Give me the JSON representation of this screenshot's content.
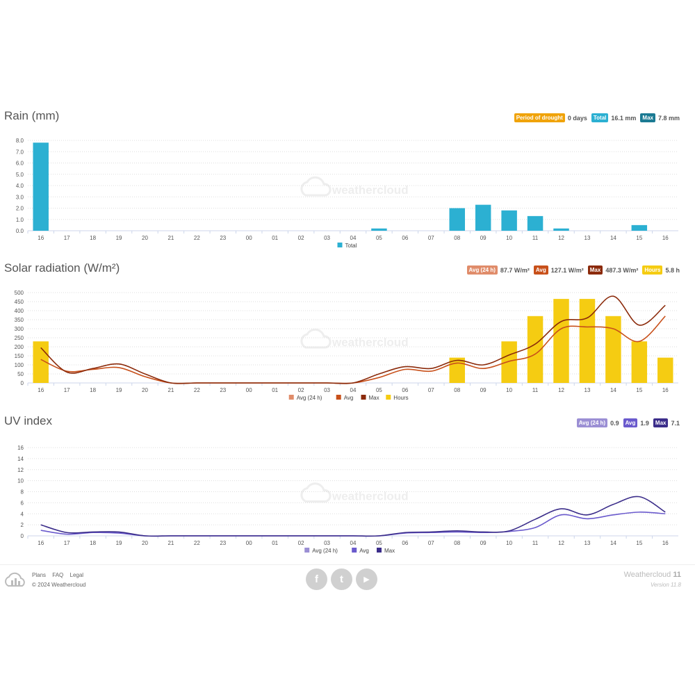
{
  "x_ticks": [
    "16",
    "17",
    "18",
    "19",
    "20",
    "21",
    "22",
    "23",
    "00",
    "01",
    "02",
    "03",
    "04",
    "05",
    "06",
    "07",
    "08",
    "09",
    "10",
    "11",
    "12",
    "13",
    "14",
    "15",
    "16"
  ],
  "watermark": "weathercloud",
  "colors": {
    "grid": "#dddddd",
    "axis": "#ccd6eb",
    "tick_text": "#555555"
  },
  "rain": {
    "title": "Rain (mm)",
    "badges": [
      {
        "label": "Period of drought",
        "value": "0 days",
        "color": "#f0a30a"
      },
      {
        "label": "Total",
        "value": "16.1 mm",
        "color": "#2cb0d2"
      },
      {
        "label": "Max",
        "value": "7.8 mm",
        "color": "#1b7a93"
      }
    ],
    "legend": [
      {
        "name": "Total",
        "color": "#2cb0d2"
      }
    ]
  },
  "solar": {
    "title": "Solar radiation (W/m²)",
    "badges": [
      {
        "label": "Avg (24 h)",
        "value": "87.7 W/m²",
        "color": "#e08c6a"
      },
      {
        "label": "Avg",
        "value": "127.1 W/m²",
        "color": "#c8501a"
      },
      {
        "label": "Max",
        "value": "487.3 W/m²",
        "color": "#8b2a0a"
      },
      {
        "label": "Hours",
        "value": "5.8 h",
        "color": "#f5cc12"
      }
    ],
    "legend": [
      {
        "name": "Avg (24 h)",
        "color": "#e08c6a"
      },
      {
        "name": "Avg",
        "color": "#c8501a"
      },
      {
        "name": "Max",
        "color": "#8b2a0a"
      },
      {
        "name": "Hours",
        "color": "#f5cc12"
      }
    ]
  },
  "uv": {
    "title": "UV index",
    "badges": [
      {
        "label": "Avg (24 h)",
        "value": "0.9",
        "color": "#9b8fd4"
      },
      {
        "label": "Avg",
        "value": "1.9",
        "color": "#6a5acd"
      },
      {
        "label": "Max",
        "value": "7.1",
        "color": "#3b2d8a"
      }
    ],
    "legend": [
      {
        "name": "Avg (24 h)",
        "color": "#9b8fd4"
      },
      {
        "name": "Avg",
        "color": "#6a5acd"
      },
      {
        "name": "Max",
        "color": "#3b2d8a"
      }
    ]
  },
  "chart_data": [
    {
      "type": "bar",
      "title": "Rain (mm)",
      "categories": [
        "16",
        "17",
        "18",
        "19",
        "20",
        "21",
        "22",
        "23",
        "00",
        "01",
        "02",
        "03",
        "04",
        "05",
        "06",
        "07",
        "08",
        "09",
        "10",
        "11",
        "12",
        "13",
        "14",
        "15",
        "16"
      ],
      "series": [
        {
          "name": "Total",
          "values": [
            7.8,
            0,
            0,
            0,
            0,
            0,
            0,
            0,
            0,
            0,
            0,
            0,
            0,
            0.2,
            0,
            0,
            2.0,
            2.3,
            1.8,
            1.3,
            0.2,
            0,
            0,
            0.5,
            0
          ]
        }
      ],
      "ylim": [
        0,
        8
      ],
      "yticks": [
        "0.0",
        "1.0",
        "2.0",
        "3.0",
        "4.0",
        "5.0",
        "6.0",
        "7.0",
        "8.0"
      ],
      "grid": true,
      "legend": "bottom"
    },
    {
      "type": "bar",
      "title": "Solar radiation (W/m²)",
      "categories": [
        "16",
        "17",
        "18",
        "19",
        "20",
        "21",
        "22",
        "23",
        "00",
        "01",
        "02",
        "03",
        "04",
        "05",
        "06",
        "07",
        "08",
        "09",
        "10",
        "11",
        "12",
        "13",
        "14",
        "15",
        "16"
      ],
      "series": [
        {
          "name": "Hours",
          "type": "bar",
          "values": [
            230,
            0,
            0,
            0,
            0,
            0,
            0,
            0,
            0,
            0,
            0,
            0,
            0,
            0,
            0,
            0,
            140,
            0,
            230,
            370,
            465,
            465,
            370,
            230,
            140
          ]
        },
        {
          "name": "Avg",
          "type": "line",
          "values": [
            130,
            65,
            75,
            85,
            35,
            0,
            0,
            0,
            0,
            0,
            0,
            0,
            0,
            30,
            75,
            65,
            110,
            80,
            120,
            160,
            300,
            310,
            300,
            230,
            370
          ]
        },
        {
          "name": "Max",
          "type": "line",
          "values": [
            195,
            60,
            80,
            105,
            50,
            0,
            0,
            0,
            0,
            0,
            0,
            0,
            0,
            50,
            90,
            80,
            125,
            100,
            155,
            215,
            340,
            360,
            480,
            320,
            430
          ]
        }
      ],
      "ylim": [
        0,
        500
      ],
      "yticks": [
        "0",
        "50",
        "100",
        "150",
        "200",
        "250",
        "300",
        "350",
        "400",
        "450",
        "500"
      ],
      "grid": true,
      "legend": "bottom"
    },
    {
      "type": "line",
      "title": "UV index",
      "categories": [
        "16",
        "17",
        "18",
        "19",
        "20",
        "21",
        "22",
        "23",
        "00",
        "01",
        "02",
        "03",
        "04",
        "05",
        "06",
        "07",
        "08",
        "09",
        "10",
        "11",
        "12",
        "13",
        "14",
        "15",
        "16"
      ],
      "series": [
        {
          "name": "Avg",
          "values": [
            1.0,
            0.3,
            0.6,
            0.5,
            0,
            0,
            0,
            0,
            0,
            0,
            0,
            0,
            0,
            0,
            0.5,
            0.6,
            0.7,
            0.6,
            0.8,
            1.5,
            3.8,
            3.1,
            3.8,
            4.3,
            4.0
          ]
        },
        {
          "name": "Max",
          "values": [
            2.0,
            0.6,
            0.7,
            0.7,
            0,
            0,
            0,
            0,
            0,
            0,
            0,
            0,
            0,
            0,
            0.6,
            0.7,
            0.9,
            0.7,
            0.9,
            3.0,
            4.9,
            3.8,
            5.7,
            7.1,
            4.3
          ]
        }
      ],
      "ylim": [
        0,
        16
      ],
      "yticks": [
        "0",
        "2",
        "4",
        "6",
        "8",
        "10",
        "12",
        "14",
        "16"
      ],
      "grid": true,
      "legend": "bottom"
    }
  ],
  "footer": {
    "links": [
      "Plans",
      "FAQ",
      "Legal"
    ],
    "copyright": "© 2024 Weathercloud",
    "brand_name": "Weathercloud",
    "brand_version_num": "11",
    "version": "Version 11.8",
    "social": [
      {
        "icon": "facebook-icon",
        "glyph": "f"
      },
      {
        "icon": "twitter-icon",
        "glyph": "t"
      },
      {
        "icon": "youtube-icon",
        "glyph": "▶"
      }
    ]
  }
}
